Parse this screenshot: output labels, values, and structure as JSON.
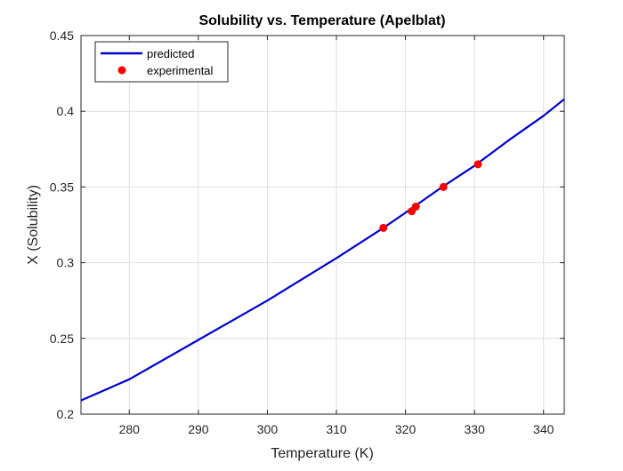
{
  "chart_data": {
    "type": "line",
    "title": "Solubility vs. Temperature (Apelblat)",
    "xlabel": "Temperature (K)",
    "ylabel": "X (Solubility)",
    "xlim": [
      273,
      343
    ],
    "ylim": [
      0.2,
      0.45
    ],
    "xticks": [
      280,
      290,
      300,
      310,
      320,
      330,
      340
    ],
    "yticks": [
      0.2,
      0.25,
      0.3,
      0.35,
      0.4,
      0.45
    ],
    "xtick_labels": [
      "280",
      "290",
      "300",
      "310",
      "320",
      "330",
      "340"
    ],
    "ytick_labels": [
      "0.2",
      "0.25",
      "0.3",
      "0.35",
      "0.4",
      "0.45"
    ],
    "grid": true,
    "legend_position": "top-left",
    "series": [
      {
        "name": "predicted",
        "kind": "line",
        "color": "#0000cc",
        "x": [
          273,
          280,
          290,
          300,
          310,
          316.8,
          320,
          325,
          330,
          335,
          340,
          343
        ],
        "y": [
          0.209,
          0.223,
          0.249,
          0.275,
          0.303,
          0.323,
          0.333,
          0.349,
          0.364,
          0.381,
          0.397,
          0.408
        ]
      },
      {
        "name": "experimental",
        "kind": "scatter",
        "color": "#ff0000",
        "x": [
          316.8,
          320.9,
          321.5,
          325.5,
          330.5
        ],
        "y": [
          0.323,
          0.334,
          0.337,
          0.35,
          0.365
        ]
      }
    ]
  }
}
